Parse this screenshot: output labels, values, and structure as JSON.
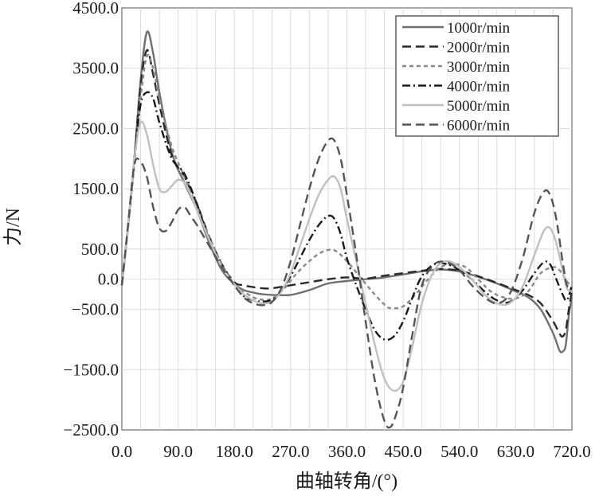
{
  "chart_data": {
    "type": "line",
    "title": "",
    "xlabel": "曲轴转角/(°)",
    "ylabel": "力/N",
    "xlim": [
      0,
      720
    ],
    "ylim": [
      -2500,
      4500
    ],
    "xticks": [
      0,
      90,
      180,
      270,
      360,
      450,
      540,
      630,
      720
    ],
    "xtick_labels": [
      "0.0",
      "90.0",
      "180.0",
      "270.0",
      "360.0",
      "450.0",
      "540.0",
      "630.0",
      "720.0"
    ],
    "yticks": [
      4500,
      3500,
      2500,
      1500,
      500,
      0,
      -500,
      -1500,
      -2500
    ],
    "ytick_labels": [
      "4500.0",
      "3500.0",
      "2500.0",
      "1500.0",
      "500.0",
      "0.0",
      "−500.0",
      "−1500.0",
      "−2500.0"
    ],
    "grid": true,
    "legend_position": "top-right",
    "series": [
      {
        "name": "1000r/min",
        "color": "#707070",
        "dash": "solid",
        "x": [
          0,
          10,
          20,
          30,
          40,
          50,
          60,
          80,
          100,
          120,
          140,
          160,
          180,
          195,
          210,
          225,
          240,
          270,
          300,
          330,
          360,
          390,
          420,
          450,
          480,
          510,
          540,
          570,
          600,
          630,
          650,
          670,
          690,
          700,
          705,
          710,
          715,
          720
        ],
        "y": [
          -100,
          900,
          2000,
          3300,
          4100,
          3750,
          3100,
          2100,
          1600,
          1150,
          600,
          150,
          -80,
          -180,
          -220,
          -250,
          -260,
          -260,
          -180,
          -70,
          -30,
          0,
          30,
          80,
          130,
          160,
          130,
          40,
          -70,
          -200,
          -300,
          -500,
          -900,
          -1180,
          -1200,
          -1100,
          -600,
          -300
        ]
      },
      {
        "name": "2000r/min",
        "color": "#2a2a2a",
        "dash": "long",
        "x": [
          0,
          10,
          20,
          30,
          40,
          50,
          60,
          80,
          100,
          120,
          140,
          160,
          180,
          195,
          210,
          225,
          240,
          270,
          300,
          330,
          360,
          390,
          420,
          450,
          480,
          510,
          540,
          570,
          600,
          630,
          650,
          670,
          690,
          700,
          705,
          710,
          715,
          720
        ],
        "y": [
          -100,
          900,
          2000,
          3200,
          3800,
          3400,
          2900,
          2050,
          1700,
          1250,
          700,
          250,
          -50,
          -100,
          -130,
          -150,
          -150,
          -100,
          -50,
          0,
          30,
          10,
          60,
          100,
          140,
          170,
          140,
          50,
          -60,
          -180,
          -260,
          -400,
          -700,
          -900,
          -950,
          -850,
          -500,
          -200
        ]
      },
      {
        "name": "3000r/min",
        "color": "#8a8a8a",
        "dash": "short",
        "x": [
          0,
          10,
          20,
          30,
          40,
          50,
          60,
          80,
          100,
          120,
          140,
          160,
          180,
          195,
          210,
          225,
          240,
          260,
          280,
          300,
          320,
          340,
          360,
          380,
          400,
          420,
          430,
          450,
          470,
          490,
          510,
          530,
          550,
          570,
          590,
          610,
          630,
          650,
          670,
          690,
          700,
          710,
          720
        ],
        "y": [
          -100,
          850,
          1900,
          3000,
          3700,
          3500,
          3000,
          2200,
          1700,
          1200,
          700,
          250,
          -80,
          -200,
          -300,
          -340,
          -320,
          -150,
          100,
          300,
          450,
          480,
          300,
          50,
          -200,
          -420,
          -480,
          -450,
          -250,
          0,
          200,
          250,
          200,
          0,
          -200,
          -300,
          -320,
          -200,
          100,
          200,
          150,
          0,
          -150
        ]
      },
      {
        "name": "4000r/min",
        "color": "#1a1a1a",
        "dash": "dashdot",
        "x": [
          0,
          10,
          20,
          30,
          40,
          50,
          60,
          80,
          100,
          120,
          140,
          160,
          180,
          195,
          210,
          225,
          240,
          255,
          270,
          285,
          300,
          315,
          330,
          340,
          350,
          360,
          375,
          390,
          405,
          420,
          435,
          450,
          465,
          480,
          500,
          520,
          540,
          560,
          580,
          600,
          620,
          640,
          660,
          675,
          685,
          695,
          705,
          712,
          720
        ],
        "y": [
          -100,
          900,
          2000,
          2900,
          3100,
          3000,
          2600,
          2000,
          1750,
          1250,
          650,
          200,
          -100,
          -280,
          -350,
          -370,
          -340,
          -200,
          50,
          350,
          650,
          900,
          1050,
          1000,
          750,
          350,
          -100,
          -500,
          -850,
          -1000,
          -950,
          -700,
          -300,
          50,
          250,
          250,
          150,
          0,
          -200,
          -350,
          -380,
          -200,
          100,
          280,
          250,
          0,
          -250,
          -350,
          -100
        ]
      },
      {
        "name": "5000r/min",
        "color": "#c0c0c0",
        "dash": "solid",
        "x": [
          0,
          10,
          20,
          30,
          40,
          50,
          60,
          70,
          80,
          90,
          100,
          110,
          120,
          140,
          160,
          180,
          195,
          210,
          225,
          240,
          255,
          270,
          285,
          300,
          315,
          330,
          340,
          350,
          360,
          375,
          390,
          405,
          420,
          435,
          450,
          465,
          480,
          500,
          520,
          540,
          560,
          580,
          600,
          620,
          640,
          660,
          675,
          685,
          695,
          705,
          712,
          720
        ],
        "y": [
          -100,
          900,
          2000,
          2600,
          2400,
          1900,
          1500,
          1450,
          1550,
          1650,
          1600,
          1400,
          1150,
          650,
          200,
          -80,
          -250,
          -350,
          -400,
          -370,
          -200,
          100,
          550,
          1000,
          1400,
          1650,
          1700,
          1500,
          1000,
          300,
          -400,
          -1100,
          -1650,
          -1850,
          -1700,
          -1100,
          -400,
          150,
          300,
          200,
          0,
          -250,
          -400,
          -400,
          -150,
          400,
          800,
          850,
          600,
          150,
          -150,
          -200
        ]
      },
      {
        "name": "6000r/min",
        "color": "#555555",
        "dash": "long",
        "x": [
          0,
          10,
          20,
          30,
          40,
          50,
          60,
          70,
          80,
          90,
          100,
          110,
          120,
          140,
          160,
          180,
          195,
          210,
          225,
          240,
          255,
          270,
          285,
          300,
          315,
          330,
          340,
          350,
          360,
          375,
          390,
          405,
          420,
          430,
          440,
          450,
          465,
          480,
          500,
          520,
          540,
          560,
          580,
          600,
          620,
          640,
          660,
          675,
          685,
          695,
          705,
          712,
          720
        ],
        "y": [
          -100,
          900,
          1900,
          1950,
          1700,
          1200,
          850,
          800,
          950,
          1150,
          1200,
          1050,
          900,
          550,
          200,
          -100,
          -300,
          -400,
          -430,
          -380,
          -150,
          300,
          900,
          1500,
          2000,
          2300,
          2300,
          2000,
          1400,
          400,
          -700,
          -1700,
          -2350,
          -2450,
          -2200,
          -1800,
          -900,
          -100,
          250,
          280,
          150,
          -100,
          -300,
          -400,
          -250,
          300,
          1100,
          1450,
          1400,
          1000,
          300,
          -100,
          -100
        ]
      }
    ]
  }
}
